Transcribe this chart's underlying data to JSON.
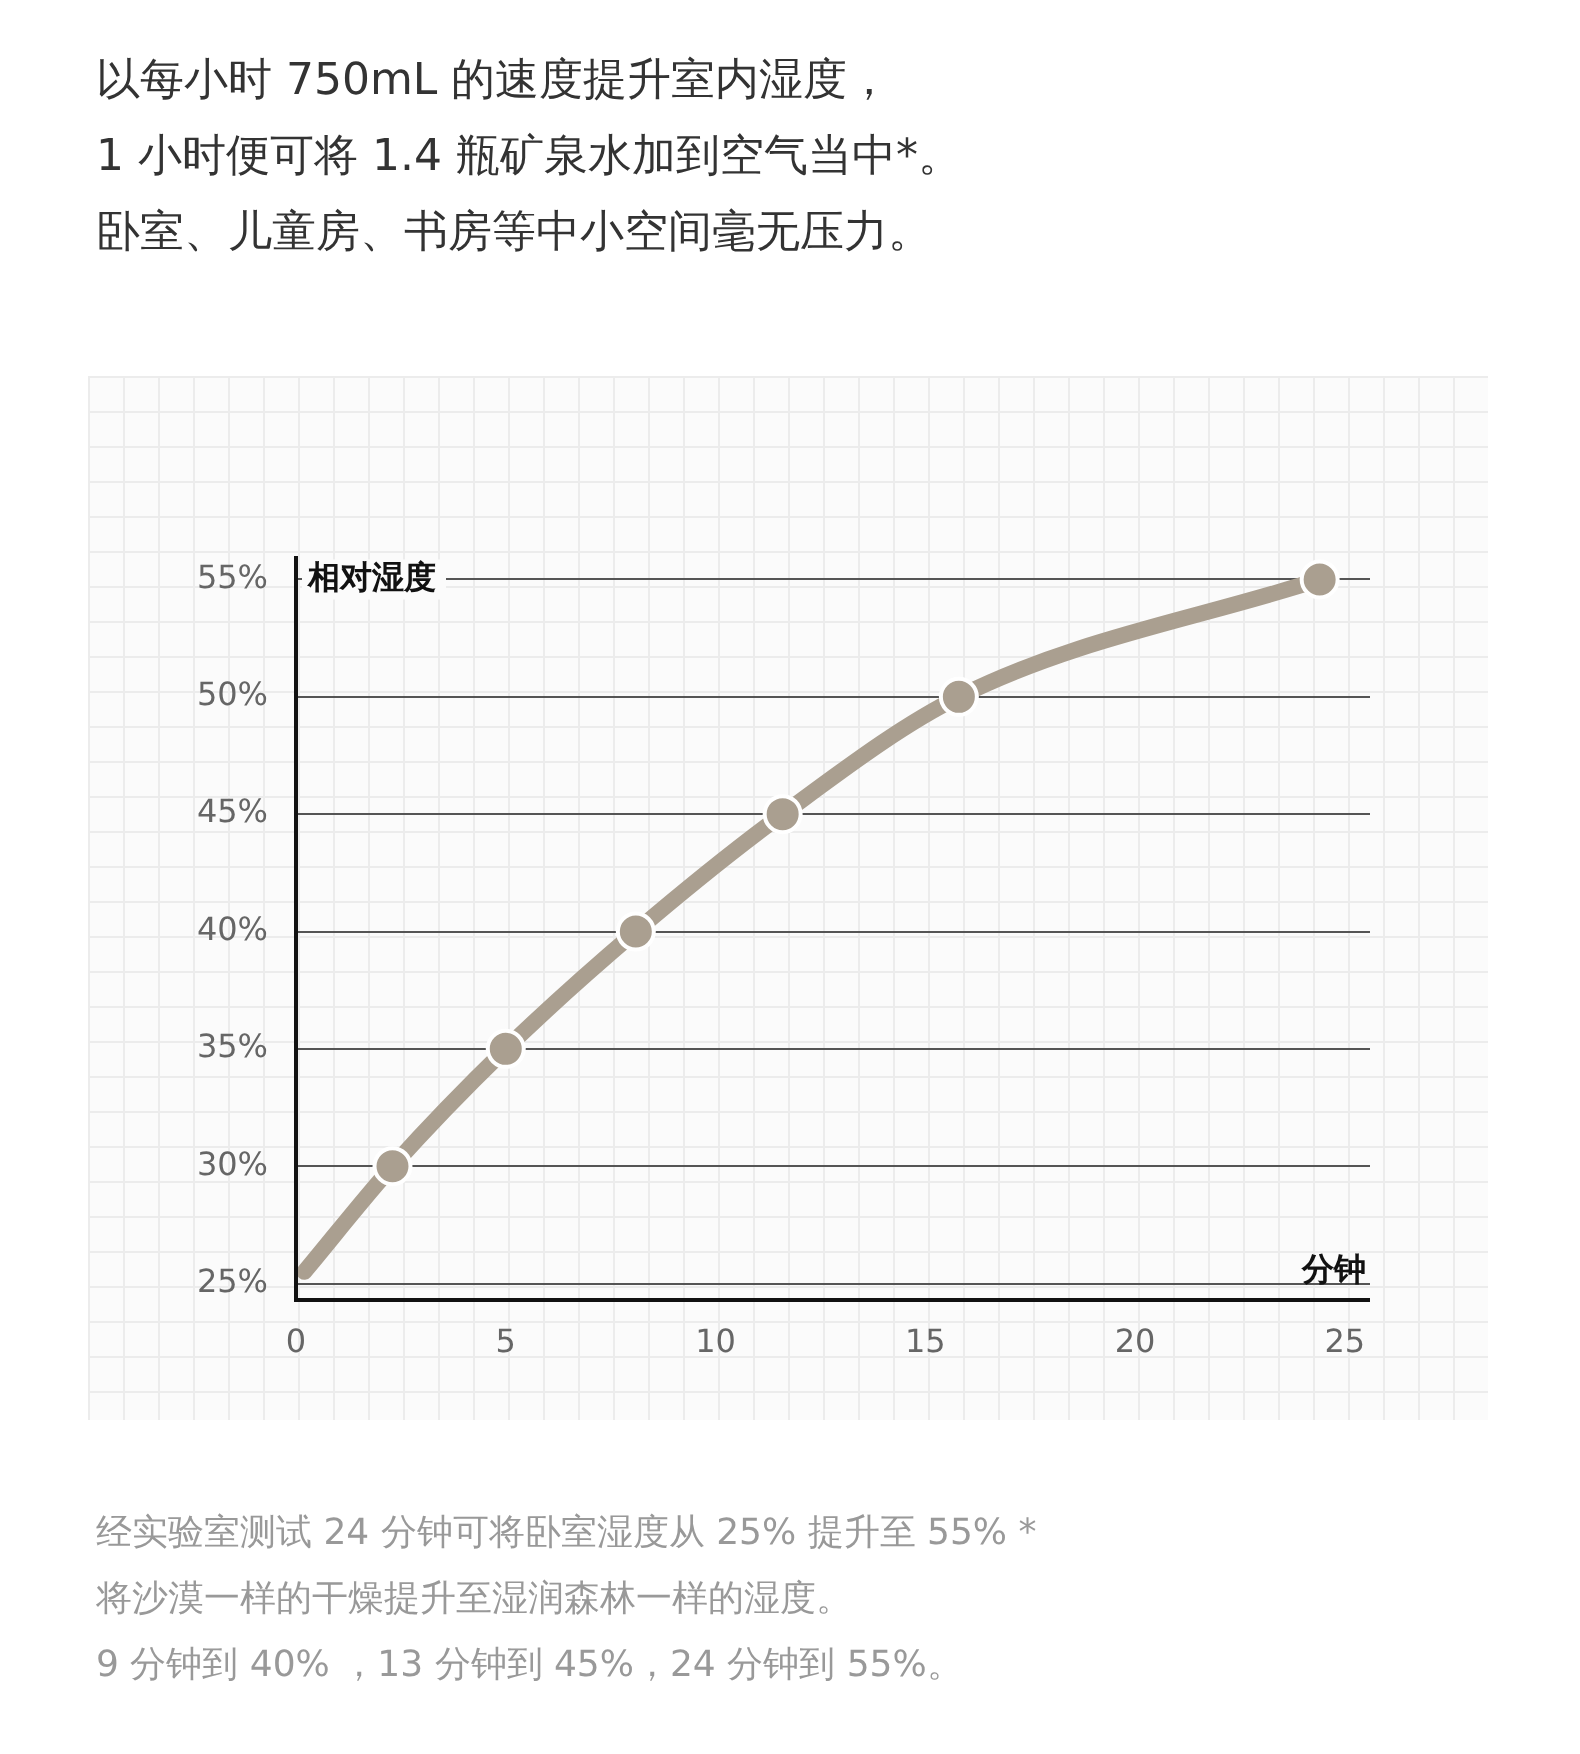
{
  "chart_data": {
    "type": "line",
    "title": "以每小时 750mL 的速度提升室内湿度，",
    "subtitle": "1 小时便可将 1.4 瓶矿泉水加到空气当中*。",
    "xlabel": "分钟",
    "ylabel": "相对湿度",
    "series": [
      {
        "color": "#aa9f90",
        "x": [
          0.2,
          2.3,
          5,
          8.1,
          11.6,
          15.8,
          24.4
        ],
        "values": [
          25.5,
          30,
          35,
          40,
          45,
          50,
          55
        ]
      }
    ],
    "xlim": [
      0,
      25.6
    ],
    "xticks": [
      0,
      5,
      10,
      15,
      20,
      25
    ],
    "ylim": [
      24.3,
      56
    ],
    "yticks": [
      {
        "value": 25,
        "label": "25%"
      },
      {
        "value": 30,
        "label": "30%"
      },
      {
        "value": 35,
        "label": "35%"
      },
      {
        "value": 40,
        "label": "40%"
      },
      {
        "value": 45,
        "label": "45%"
      },
      {
        "value": 50,
        "label": "50%"
      },
      {
        "value": 55,
        "label": "55%"
      }
    ],
    "grid": "y",
    "legend": false,
    "marker": "circle",
    "line_style": "solid",
    "annotations": [
      "卧室、儿童房、书房等中小空间毫无压力。",
      "经实验室测试 24 分钟可将卧室湿度从 25% 提升至 55% *",
      "将沙漠一样的干燥提升至湿润森林一样的湿度。",
      "9 分钟到 40% ，13 分钟到 45%，24 分钟到 55%。"
    ]
  }
}
